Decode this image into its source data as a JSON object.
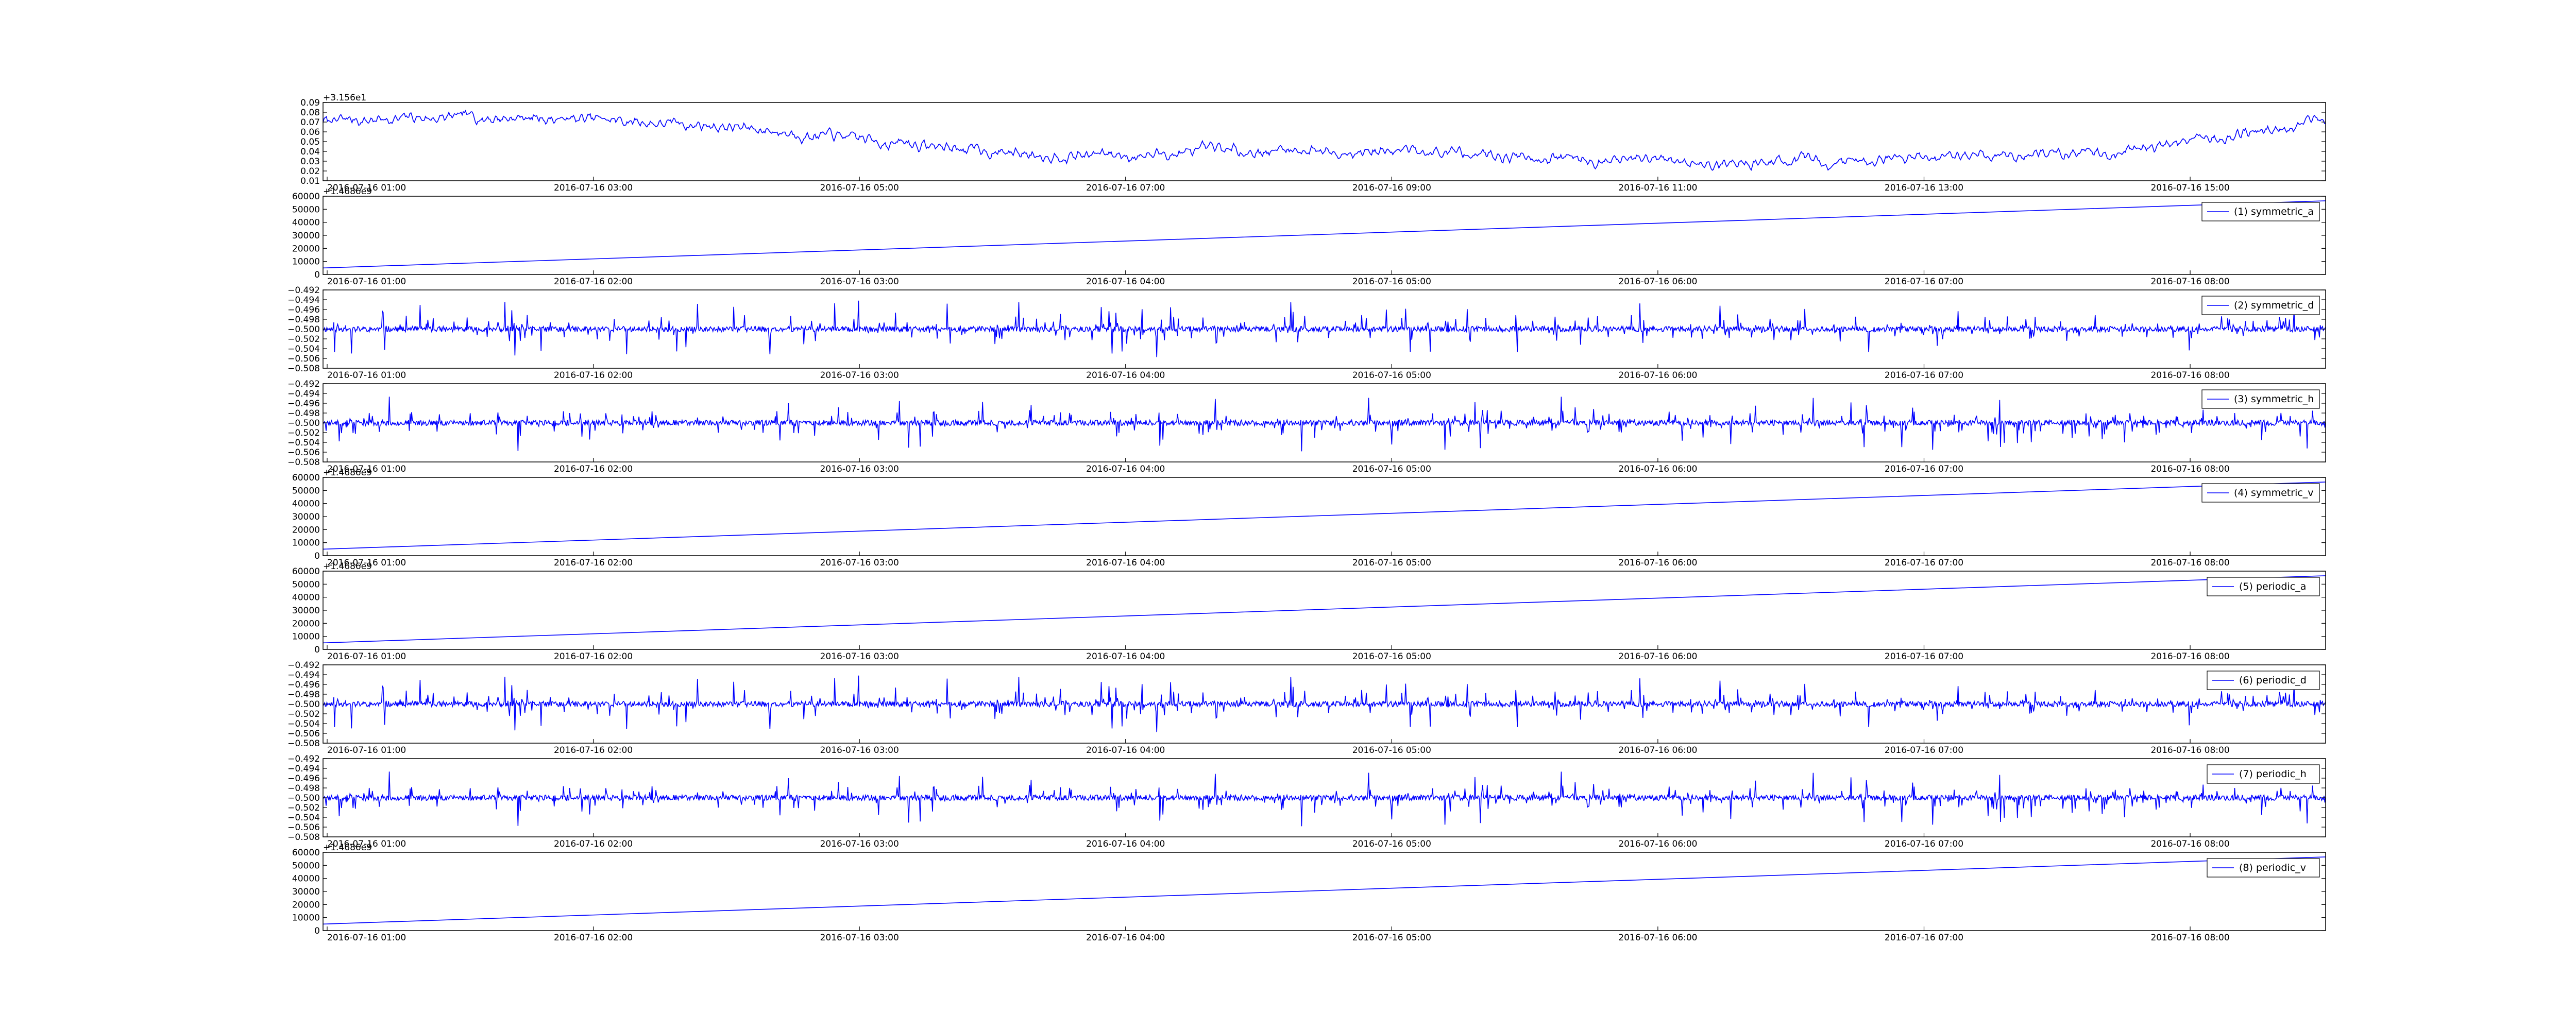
{
  "chart_data": [
    {
      "type": "line",
      "title": "",
      "offset_label": "+3.156e1",
      "legend": null,
      "ylim": [
        0.01,
        0.09
      ],
      "y_ticks": [
        "0.09",
        "0.08",
        "0.07",
        "0.06",
        "0.05",
        "0.04",
        "0.03",
        "0.02",
        "0.01"
      ],
      "x_ticks": [
        "2016-07-16 01:00",
        "2016-07-16 03:00",
        "2016-07-16 05:00",
        "2016-07-16 07:00",
        "2016-07-16 09:00",
        "2016-07-16 11:00",
        "2016-07-16 13:00",
        "2016-07-16 15:00"
      ],
      "series": [
        {
          "kind": "noise",
          "color": "#0000ff",
          "keypoints": [
            [
              0,
              0.071
            ],
            [
              0.05,
              0.074
            ],
            [
              0.1,
              0.075
            ],
            [
              0.15,
              0.071
            ],
            [
              0.2,
              0.066
            ],
            [
              0.25,
              0.056
            ],
            [
              0.3,
              0.046
            ],
            [
              0.35,
              0.038
            ],
            [
              0.4,
              0.036
            ],
            [
              0.45,
              0.04
            ],
            [
              0.5,
              0.042
            ],
            [
              0.55,
              0.04
            ],
            [
              0.6,
              0.036
            ],
            [
              0.63,
              0.033
            ],
            [
              0.66,
              0.03
            ],
            [
              0.7,
              0.028
            ],
            [
              0.73,
              0.03
            ],
            [
              0.75,
              0.028
            ],
            [
              0.8,
              0.036
            ],
            [
              0.85,
              0.037
            ],
            [
              0.9,
              0.04
            ],
            [
              0.93,
              0.05
            ],
            [
              0.96,
              0.06
            ],
            [
              1,
              0.072
            ]
          ],
          "amplitude": 0.006
        }
      ]
    },
    {
      "type": "line",
      "offset_label": "+1.4686e9",
      "legend": "(1) symmetric_a",
      "ylim": [
        0,
        60000
      ],
      "y_ticks": [
        "60000",
        "50000",
        "40000",
        "30000",
        "20000",
        "10000",
        "0"
      ],
      "x_ticks": [
        "2016-07-16 01:00",
        "2016-07-16 02:00",
        "2016-07-16 03:00",
        "2016-07-16 04:00",
        "2016-07-16 05:00",
        "2016-07-16 06:00",
        "2016-07-16 07:00",
        "2016-07-16 08:00"
      ],
      "series": [
        {
          "kind": "linear",
          "color": "#0000ff",
          "start": 5000,
          "end": 56500
        }
      ]
    },
    {
      "type": "line",
      "offset_label": "",
      "legend": "(2) symmetric_d",
      "ylim": [
        -0.508,
        -0.492
      ],
      "y_ticks": [
        "−0.492",
        "−0.494",
        "−0.496",
        "−0.498",
        "−0.500",
        "−0.502",
        "−0.504",
        "−0.506",
        "−0.508"
      ],
      "x_ticks": [
        "2016-07-16 01:00",
        "2016-07-16 02:00",
        "2016-07-16 03:00",
        "2016-07-16 04:00",
        "2016-07-16 05:00",
        "2016-07-16 06:00",
        "2016-07-16 07:00",
        "2016-07-16 08:00"
      ],
      "series": [
        {
          "kind": "spikes",
          "color": "#0000ff",
          "center": -0.5,
          "amplitude": 0.0055,
          "seed": 11
        }
      ]
    },
    {
      "type": "line",
      "offset_label": "",
      "legend": "(3) symmetric_h",
      "ylim": [
        -0.508,
        -0.492
      ],
      "y_ticks": [
        "−0.492",
        "−0.494",
        "−0.496",
        "−0.498",
        "−0.500",
        "−0.502",
        "−0.504",
        "−0.506",
        "−0.508"
      ],
      "x_ticks": [
        "2016-07-16 01:00",
        "2016-07-16 02:00",
        "2016-07-16 03:00",
        "2016-07-16 04:00",
        "2016-07-16 05:00",
        "2016-07-16 06:00",
        "2016-07-16 07:00",
        "2016-07-16 08:00"
      ],
      "series": [
        {
          "kind": "spikes",
          "color": "#0000ff",
          "center": -0.5,
          "amplitude": 0.0055,
          "seed": 23
        }
      ]
    },
    {
      "type": "line",
      "offset_label": "+1.4686e9",
      "legend": "(4) symmetric_v",
      "ylim": [
        0,
        60000
      ],
      "y_ticks": [
        "60000",
        "50000",
        "40000",
        "30000",
        "20000",
        "10000",
        "0"
      ],
      "x_ticks": [
        "2016-07-16 01:00",
        "2016-07-16 02:00",
        "2016-07-16 03:00",
        "2016-07-16 04:00",
        "2016-07-16 05:00",
        "2016-07-16 06:00",
        "2016-07-16 07:00",
        "2016-07-16 08:00"
      ],
      "series": [
        {
          "kind": "linear",
          "color": "#0000ff",
          "start": 5000,
          "end": 56500
        }
      ]
    },
    {
      "type": "line",
      "offset_label": "+1.4686e9",
      "legend": "(5) periodic_a",
      "ylim": [
        0,
        60000
      ],
      "y_ticks": [
        "60000",
        "50000",
        "40000",
        "30000",
        "20000",
        "10000",
        "0"
      ],
      "x_ticks": [
        "2016-07-16 01:00",
        "2016-07-16 02:00",
        "2016-07-16 03:00",
        "2016-07-16 04:00",
        "2016-07-16 05:00",
        "2016-07-16 06:00",
        "2016-07-16 07:00",
        "2016-07-16 08:00"
      ],
      "series": [
        {
          "kind": "linear",
          "color": "#0000ff",
          "start": 5000,
          "end": 56500
        }
      ]
    },
    {
      "type": "line",
      "offset_label": "",
      "legend": "(6) periodic_d",
      "ylim": [
        -0.508,
        -0.492
      ],
      "y_ticks": [
        "−0.492",
        "−0.494",
        "−0.496",
        "−0.498",
        "−0.500",
        "−0.502",
        "−0.504",
        "−0.506",
        "−0.508"
      ],
      "x_ticks": [
        "2016-07-16 01:00",
        "2016-07-16 02:00",
        "2016-07-16 03:00",
        "2016-07-16 04:00",
        "2016-07-16 05:00",
        "2016-07-16 06:00",
        "2016-07-16 07:00",
        "2016-07-16 08:00"
      ],
      "series": [
        {
          "kind": "spikes",
          "color": "#0000ff",
          "center": -0.5,
          "amplitude": 0.0055,
          "seed": 11
        }
      ]
    },
    {
      "type": "line",
      "offset_label": "",
      "legend": "(7) periodic_h",
      "ylim": [
        -0.508,
        -0.492
      ],
      "y_ticks": [
        "−0.492",
        "−0.494",
        "−0.496",
        "−0.498",
        "−0.500",
        "−0.502",
        "−0.504",
        "−0.506",
        "−0.508"
      ],
      "x_ticks": [
        "2016-07-16 01:00",
        "2016-07-16 02:00",
        "2016-07-16 03:00",
        "2016-07-16 04:00",
        "2016-07-16 05:00",
        "2016-07-16 06:00",
        "2016-07-16 07:00",
        "2016-07-16 08:00"
      ],
      "series": [
        {
          "kind": "spikes",
          "color": "#0000ff",
          "center": -0.5,
          "amplitude": 0.0055,
          "seed": 23
        }
      ]
    },
    {
      "type": "line",
      "offset_label": "+1.4686e9",
      "legend": "(8) periodic_v",
      "ylim": [
        0,
        60000
      ],
      "y_ticks": [
        "60000",
        "50000",
        "40000",
        "30000",
        "20000",
        "10000",
        "0"
      ],
      "x_ticks": [
        "2016-07-16 01:00",
        "2016-07-16 02:00",
        "2016-07-16 03:00",
        "2016-07-16 04:00",
        "2016-07-16 05:00",
        "2016-07-16 06:00",
        "2016-07-16 07:00",
        "2016-07-16 08:00"
      ],
      "series": [
        {
          "kind": "linear",
          "color": "#0000ff",
          "start": 5000,
          "end": 56500
        }
      ]
    }
  ]
}
